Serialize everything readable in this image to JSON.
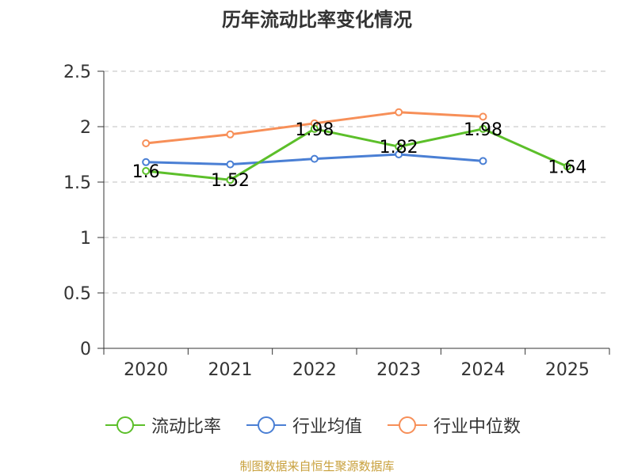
{
  "chart_data": {
    "type": "line",
    "title": "历年流动比率变化情况",
    "categories": [
      "2020",
      "2021",
      "2022",
      "2023",
      "2024",
      "2025"
    ],
    "ylim": [
      0,
      2.5
    ],
    "yticks": [
      "0",
      "0.5",
      "1",
      "1.5",
      "2",
      "2.5"
    ],
    "grid": true,
    "legend_position": "bottom",
    "series": [
      {
        "name": "流动比率",
        "color": "#5cbf2a",
        "values": [
          1.6,
          1.52,
          1.98,
          1.82,
          1.98,
          1.64
        ],
        "labels": [
          "1.6",
          "1.52",
          "1.98",
          "1.82",
          "1.98",
          "1.64"
        ]
      },
      {
        "name": "行业均值",
        "color": "#4a7fd4",
        "values": [
          1.68,
          1.66,
          1.71,
          1.75,
          1.69,
          null
        ]
      },
      {
        "name": "行业中位数",
        "color": "#f78f58",
        "values": [
          1.85,
          1.93,
          2.03,
          2.13,
          2.09,
          null
        ]
      }
    ]
  },
  "source_note": "制图数据来自恒生聚源数据库"
}
